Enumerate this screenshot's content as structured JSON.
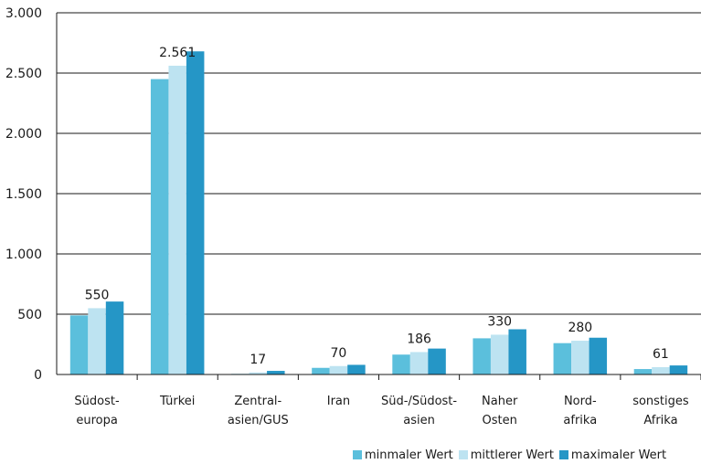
{
  "chart_data": {
    "type": "bar",
    "title": "",
    "xlabel": "",
    "ylabel": "",
    "ylim": [
      0,
      3000
    ],
    "yticks": [
      0,
      500,
      1000,
      1500,
      2000,
      2500,
      3000
    ],
    "ytick_labels": [
      "0",
      "500",
      "1.000",
      "1.500",
      "2.000",
      "2.500",
      "3.000"
    ],
    "grid": true,
    "legend_position": "bottom-right",
    "categories": [
      [
        "Südost-",
        "europa"
      ],
      [
        "Türkei"
      ],
      [
        "Zentral-",
        "asien/GUS"
      ],
      [
        "Iran"
      ],
      [
        "Süd-/Südost-",
        "asien"
      ],
      [
        "Naher",
        "Osten"
      ],
      [
        "Nord-",
        "afrika"
      ],
      [
        "sonstiges",
        "Afrika"
      ]
    ],
    "series": [
      {
        "name": "minmaler Wert",
        "color": "#5bbfdc",
        "values": [
          490,
          2450,
          5,
          55,
          165,
          300,
          260,
          45
        ]
      },
      {
        "name": "mittlerer Wert",
        "color": "#bde3f1",
        "values": [
          550,
          2561,
          17,
          70,
          186,
          330,
          280,
          61
        ]
      },
      {
        "name": "maximaler Wert",
        "color": "#2596c6",
        "values": [
          605,
          2680,
          30,
          80,
          215,
          375,
          305,
          75
        ]
      }
    ],
    "data_labels": [
      "550",
      "2.561",
      "17",
      "70",
      "186",
      "330",
      "280",
      "61"
    ]
  }
}
